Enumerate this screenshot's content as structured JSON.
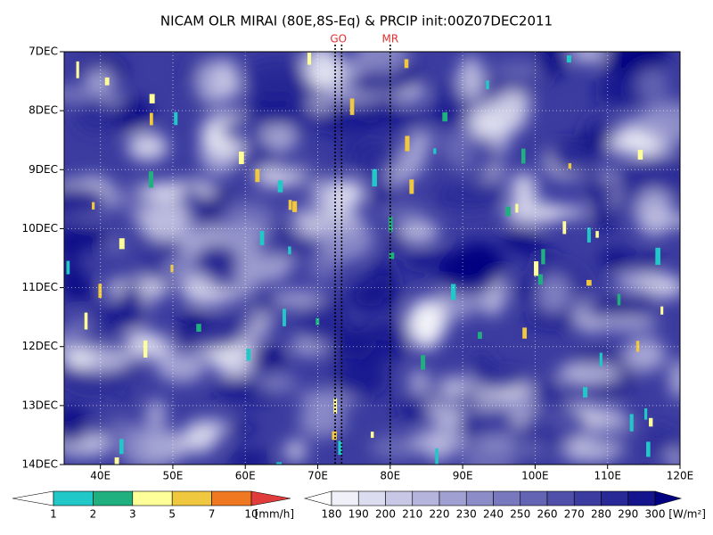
{
  "chart_data": {
    "type": "hovmoller",
    "title": "NICAM OLR MIRAI (80E,8S-Eq) & PRCIP init:00Z07DEC2011",
    "xlim": [
      35,
      120
    ],
    "xticks": [
      {
        "value": 40,
        "label": "40E"
      },
      {
        "value": 50,
        "label": "50E"
      },
      {
        "value": 60,
        "label": "60E"
      },
      {
        "value": 70,
        "label": "70E"
      },
      {
        "value": 80,
        "label": "80E"
      },
      {
        "value": 90,
        "label": "90E"
      },
      {
        "value": 100,
        "label": "100E"
      },
      {
        "value": 110,
        "label": "110E"
      },
      {
        "value": 120,
        "label": "120E"
      }
    ],
    "ylim": [
      7,
      14
    ],
    "yticks": [
      {
        "value": 7,
        "label": "7DEC"
      },
      {
        "value": 8,
        "label": "8DEC"
      },
      {
        "value": 9,
        "label": "9DEC"
      },
      {
        "value": 10,
        "label": "10DEC"
      },
      {
        "value": 11,
        "label": "11DEC"
      },
      {
        "value": 12,
        "label": "12DEC"
      },
      {
        "value": 13,
        "label": "13DEC"
      },
      {
        "value": 14,
        "label": "14DEC"
      }
    ],
    "y_reversed": true,
    "grid": true,
    "markers": [
      {
        "label": "GO",
        "x": [
          72.4,
          73.3
        ],
        "color": "#e03030"
      },
      {
        "label": "MR",
        "x": [
          80
        ],
        "color": "#e03030"
      }
    ],
    "precip_colorbar": {
      "boundaries": [
        1,
        2,
        3,
        5,
        7,
        10
      ],
      "under_color": "#ffffff",
      "colors": [
        "#20c8c8",
        "#20b080",
        "#ffff9a",
        "#f0c840",
        "#f07820"
      ],
      "over_color": "#e03c3c",
      "unit": "[mm/h]"
    },
    "olr_colorbar": {
      "boundaries": [
        180,
        190,
        200,
        210,
        220,
        230,
        240,
        250,
        260,
        270,
        280,
        290,
        300
      ],
      "under_color": "#ffffff",
      "colors": [
        "#f0f0f8",
        "#dcdcf0",
        "#c8c8e6",
        "#b4b4dc",
        "#a0a0d2",
        "#8c8cc8",
        "#7878be",
        "#6464b4",
        "#5050aa",
        "#3c3ca0",
        "#282896",
        "#14148c"
      ],
      "over_color": "#000080",
      "unit": "[W/m²]"
    }
  }
}
